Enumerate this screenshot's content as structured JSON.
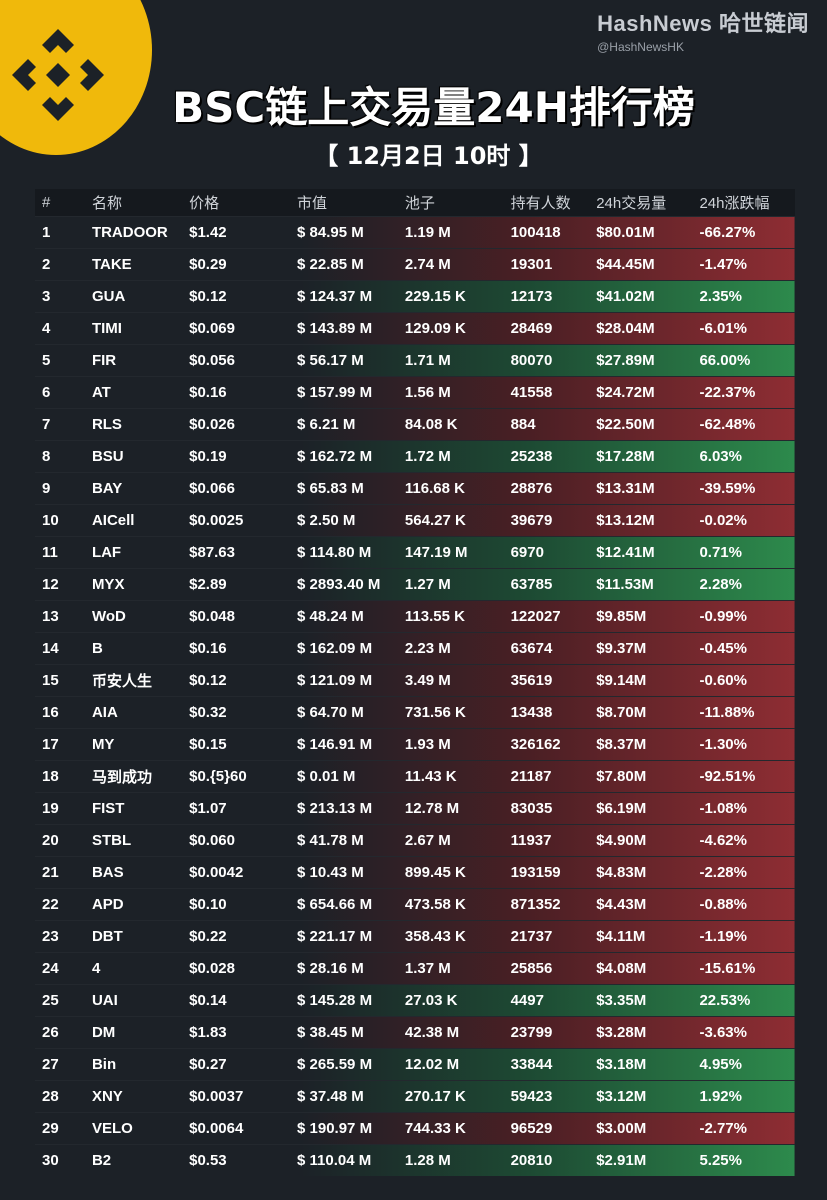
{
  "brand": {
    "name": "HashNews 哈世链闻",
    "handle": "@HashNewsHK"
  },
  "title": "BSC链上交易量24H排行榜",
  "subtitle": "【 12月2日 10时 】",
  "headers": [
    "#",
    "名称",
    "价格",
    "市值",
    "池子",
    "持有人数",
    "24h交易量",
    "24h涨跌幅"
  ],
  "rows": [
    {
      "rank": "1",
      "name": "TRADOOR",
      "price": "$1.42",
      "mcap": "$ 84.95 M",
      "pool": "1.19 M",
      "holders": "100418",
      "vol": "$80.01M",
      "change": "-66.27%",
      "dir": "neg"
    },
    {
      "rank": "2",
      "name": "TAKE",
      "price": "$0.29",
      "mcap": "$ 22.85 M",
      "pool": "2.74 M",
      "holders": "19301",
      "vol": "$44.45M",
      "change": "-1.47%",
      "dir": "neg"
    },
    {
      "rank": "3",
      "name": "GUA",
      "price": "$0.12",
      "mcap": "$ 124.37 M",
      "pool": "229.15 K",
      "holders": "12173",
      "vol": "$41.02M",
      "change": "2.35%",
      "dir": "pos"
    },
    {
      "rank": "4",
      "name": "TIMI",
      "price": "$0.069",
      "mcap": "$ 143.89 M",
      "pool": "129.09 K",
      "holders": "28469",
      "vol": "$28.04M",
      "change": "-6.01%",
      "dir": "neg"
    },
    {
      "rank": "5",
      "name": "FIR",
      "price": "$0.056",
      "mcap": "$ 56.17 M",
      "pool": "1.71 M",
      "holders": "80070",
      "vol": "$27.89M",
      "change": "66.00%",
      "dir": "pos"
    },
    {
      "rank": "6",
      "name": "AT",
      "price": "$0.16",
      "mcap": "$ 157.99 M",
      "pool": "1.56 M",
      "holders": "41558",
      "vol": "$24.72M",
      "change": "-22.37%",
      "dir": "neg"
    },
    {
      "rank": "7",
      "name": "RLS",
      "price": "$0.026",
      "mcap": "$ 6.21 M",
      "pool": "84.08 K",
      "holders": "884",
      "vol": "$22.50M",
      "change": "-62.48%",
      "dir": "neg"
    },
    {
      "rank": "8",
      "name": "BSU",
      "price": "$0.19",
      "mcap": "$ 162.72 M",
      "pool": "1.72 M",
      "holders": "25238",
      "vol": "$17.28M",
      "change": "6.03%",
      "dir": "pos"
    },
    {
      "rank": "9",
      "name": "BAY",
      "price": "$0.066",
      "mcap": "$ 65.83 M",
      "pool": "116.68 K",
      "holders": "28876",
      "vol": "$13.31M",
      "change": "-39.59%",
      "dir": "neg"
    },
    {
      "rank": "10",
      "name": "AICell",
      "price": "$0.0025",
      "mcap": "$ 2.50 M",
      "pool": "564.27 K",
      "holders": "39679",
      "vol": "$13.12M",
      "change": "-0.02%",
      "dir": "neg"
    },
    {
      "rank": "11",
      "name": "LAF",
      "price": "$87.63",
      "mcap": "$ 114.80 M",
      "pool": "147.19 M",
      "holders": "6970",
      "vol": "$12.41M",
      "change": "0.71%",
      "dir": "pos"
    },
    {
      "rank": "12",
      "name": "MYX",
      "price": "$2.89",
      "mcap": "$ 2893.40 M",
      "pool": "1.27 M",
      "holders": "63785",
      "vol": "$11.53M",
      "change": "2.28%",
      "dir": "pos"
    },
    {
      "rank": "13",
      "name": "WoD",
      "price": "$0.048",
      "mcap": "$ 48.24 M",
      "pool": "113.55 K",
      "holders": "122027",
      "vol": "$9.85M",
      "change": "-0.99%",
      "dir": "neg"
    },
    {
      "rank": "14",
      "name": "B",
      "price": "$0.16",
      "mcap": "$ 162.09 M",
      "pool": "2.23 M",
      "holders": "63674",
      "vol": "$9.37M",
      "change": "-0.45%",
      "dir": "neg"
    },
    {
      "rank": "15",
      "name": "币安人生",
      "price": "$0.12",
      "mcap": "$ 121.09 M",
      "pool": "3.49 M",
      "holders": "35619",
      "vol": "$9.14M",
      "change": "-0.60%",
      "dir": "neg"
    },
    {
      "rank": "16",
      "name": "AIA",
      "price": "$0.32",
      "mcap": "$ 64.70 M",
      "pool": "731.56 K",
      "holders": "13438",
      "vol": "$8.70M",
      "change": "-11.88%",
      "dir": "neg"
    },
    {
      "rank": "17",
      "name": "MY",
      "price": "$0.15",
      "mcap": "$ 146.91 M",
      "pool": "1.93 M",
      "holders": "326162",
      "vol": "$8.37M",
      "change": "-1.30%",
      "dir": "neg"
    },
    {
      "rank": "18",
      "name": "马到成功",
      "price": "$0.{5}60",
      "mcap": "$ 0.01 M",
      "pool": "11.43 K",
      "holders": "21187",
      "vol": "$7.80M",
      "change": "-92.51%",
      "dir": "neg"
    },
    {
      "rank": "19",
      "name": "FIST",
      "price": "$1.07",
      "mcap": "$ 213.13 M",
      "pool": "12.78 M",
      "holders": "83035",
      "vol": "$6.19M",
      "change": "-1.08%",
      "dir": "neg"
    },
    {
      "rank": "20",
      "name": "STBL",
      "price": "$0.060",
      "mcap": "$ 41.78 M",
      "pool": "2.67 M",
      "holders": "11937",
      "vol": "$4.90M",
      "change": "-4.62%",
      "dir": "neg"
    },
    {
      "rank": "21",
      "name": "BAS",
      "price": "$0.0042",
      "mcap": "$ 10.43 M",
      "pool": "899.45 K",
      "holders": "193159",
      "vol": "$4.83M",
      "change": "-2.28%",
      "dir": "neg"
    },
    {
      "rank": "22",
      "name": "APD",
      "price": "$0.10",
      "mcap": "$ 654.66 M",
      "pool": "473.58 K",
      "holders": "871352",
      "vol": "$4.43M",
      "change": "-0.88%",
      "dir": "neg"
    },
    {
      "rank": "23",
      "name": "DBT",
      "price": "$0.22",
      "mcap": "$ 221.17 M",
      "pool": "358.43 K",
      "holders": "21737",
      "vol": "$4.11M",
      "change": "-1.19%",
      "dir": "neg"
    },
    {
      "rank": "24",
      "name": "4",
      "price": "$0.028",
      "mcap": "$ 28.16 M",
      "pool": "1.37 M",
      "holders": "25856",
      "vol": "$4.08M",
      "change": "-15.61%",
      "dir": "neg"
    },
    {
      "rank": "25",
      "name": "UAI",
      "price": "$0.14",
      "mcap": "$ 145.28 M",
      "pool": "27.03 K",
      "holders": "4497",
      "vol": "$3.35M",
      "change": "22.53%",
      "dir": "pos"
    },
    {
      "rank": "26",
      "name": "DM",
      "price": "$1.83",
      "mcap": "$ 38.45 M",
      "pool": "42.38 M",
      "holders": "23799",
      "vol": "$3.28M",
      "change": "-3.63%",
      "dir": "neg"
    },
    {
      "rank": "27",
      "name": "Bin",
      "price": "$0.27",
      "mcap": "$ 265.59 M",
      "pool": "12.02 M",
      "holders": "33844",
      "vol": "$3.18M",
      "change": "4.95%",
      "dir": "pos"
    },
    {
      "rank": "28",
      "name": "XNY",
      "price": "$0.0037",
      "mcap": "$ 37.48 M",
      "pool": "270.17 K",
      "holders": "59423",
      "vol": "$3.12M",
      "change": "1.92%",
      "dir": "pos"
    },
    {
      "rank": "29",
      "name": "VELO",
      "price": "$0.0064",
      "mcap": "$ 190.97 M",
      "pool": "744.33 K",
      "holders": "96529",
      "vol": "$3.00M",
      "change": "-2.77%",
      "dir": "neg"
    },
    {
      "rank": "30",
      "name": "B2",
      "price": "$0.53",
      "mcap": "$ 110.04 M",
      "pool": "1.28 M",
      "holders": "20810",
      "vol": "$2.91M",
      "change": "5.25%",
      "dir": "pos"
    }
  ],
  "colors": {
    "negative": "#8e2d33",
    "positive": "#2d8a4c",
    "logo": "#f0b90b"
  },
  "icons": {
    "logo": "binance-logo-icon"
  }
}
